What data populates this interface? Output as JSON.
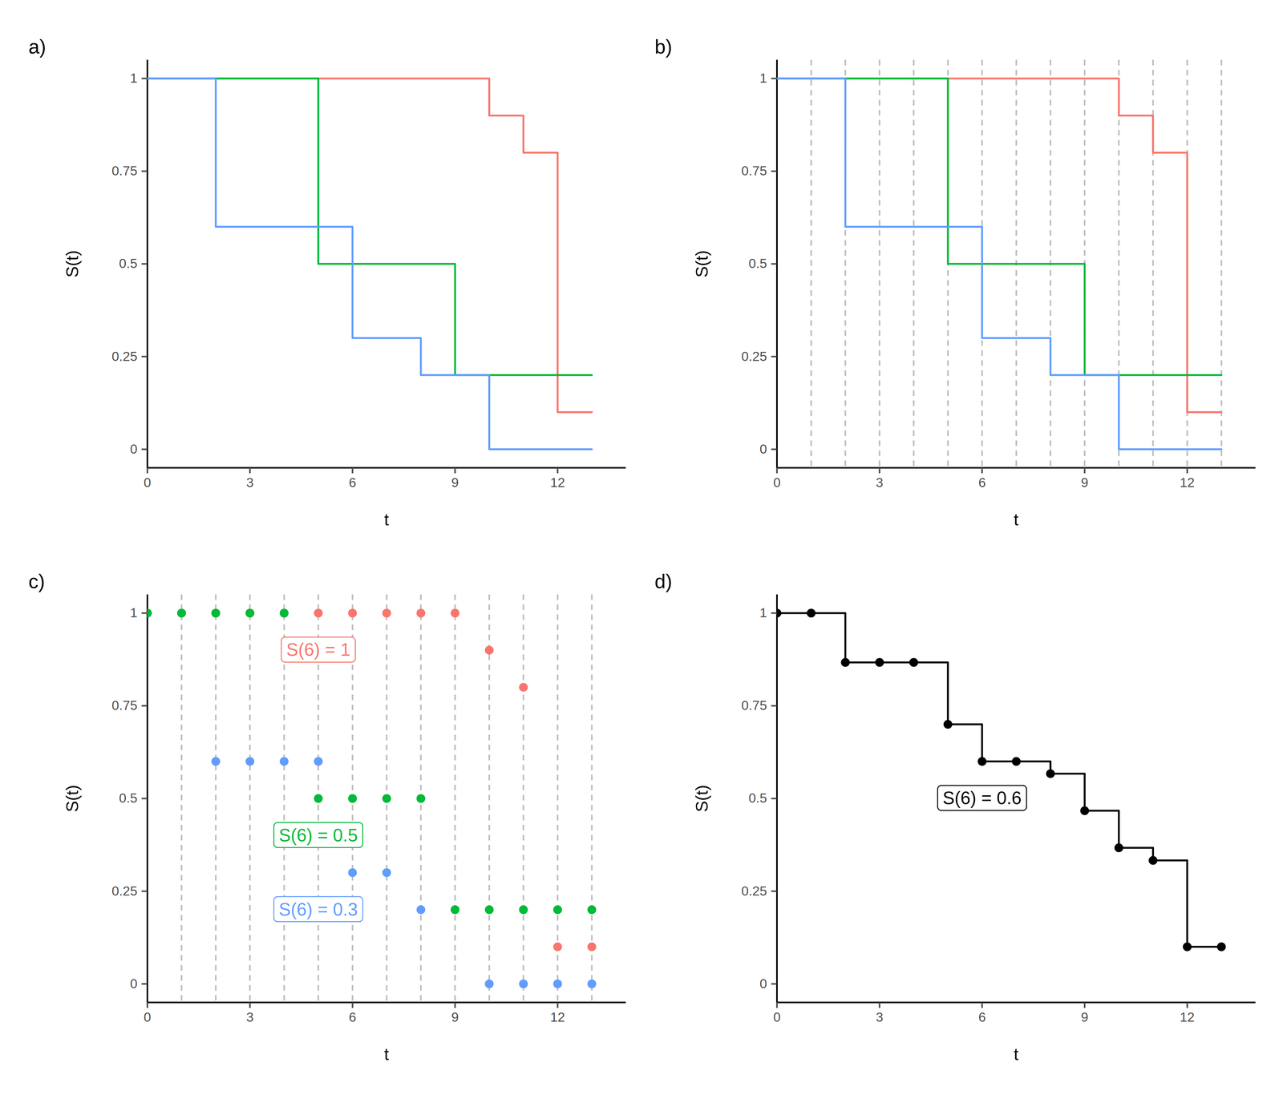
{
  "chart_data": [
    {
      "type": "step",
      "title": "a)",
      "x_label": "t",
      "y_label": "S(t)",
      "x": [
        0,
        1,
        2,
        3,
        4,
        5,
        6,
        7,
        8,
        9,
        10,
        11,
        12,
        13
      ],
      "series": [
        {
          "color": "#F8766D",
          "values": [
            1,
            1,
            1,
            1,
            1,
            1,
            1,
            1,
            1,
            1,
            0.9,
            0.8,
            0.1,
            0.1
          ]
        },
        {
          "color": "#00BA38",
          "values": [
            1,
            1,
            1,
            1,
            1,
            0.5,
            0.5,
            0.5,
            0.5,
            0.2,
            0.2,
            0.2,
            0.2,
            0.2
          ]
        },
        {
          "color": "#619CFF",
          "values": [
            1,
            1,
            0.6,
            0.6,
            0.6,
            0.6,
            0.3,
            0.3,
            0.2,
            0.2,
            0,
            0,
            0,
            0
          ]
        }
      ],
      "xlim": [
        0,
        14
      ],
      "ylim": [
        -0.05,
        1.05
      ],
      "xticks": [
        0,
        3,
        6,
        9,
        12
      ],
      "yticks": [
        0,
        0.25,
        0.5,
        0.75,
        1
      ]
    },
    {
      "type": "step",
      "title": "b)",
      "x_label": "t",
      "y_label": "S(t)",
      "x": [
        0,
        1,
        2,
        3,
        4,
        5,
        6,
        7,
        8,
        9,
        10,
        11,
        12,
        13
      ],
      "series": [
        {
          "color": "#F8766D",
          "values": [
            1,
            1,
            1,
            1,
            1,
            1,
            1,
            1,
            1,
            1,
            0.9,
            0.8,
            0.1,
            0.1
          ]
        },
        {
          "color": "#00BA38",
          "values": [
            1,
            1,
            1,
            1,
            1,
            0.5,
            0.5,
            0.5,
            0.5,
            0.2,
            0.2,
            0.2,
            0.2,
            0.2
          ]
        },
        {
          "color": "#619CFF",
          "values": [
            1,
            1,
            0.6,
            0.6,
            0.6,
            0.6,
            0.3,
            0.3,
            0.2,
            0.2,
            0,
            0,
            0,
            0
          ]
        }
      ],
      "vlines": [
        1,
        2,
        3,
        4,
        5,
        6,
        7,
        8,
        9,
        10,
        11,
        12,
        13
      ],
      "xlim": [
        0,
        14
      ],
      "ylim": [
        -0.05,
        1.05
      ],
      "xticks": [
        0,
        3,
        6,
        9,
        12
      ],
      "yticks": [
        0,
        0.25,
        0.5,
        0.75,
        1
      ]
    },
    {
      "type": "scatter",
      "marker": "circle",
      "title": "c)",
      "x_label": "t",
      "y_label": "S(t)",
      "x": [
        0,
        1,
        2,
        3,
        4,
        5,
        6,
        7,
        8,
        9,
        10,
        11,
        12,
        13
      ],
      "series": [
        {
          "color": "#F8766D",
          "values": [
            1,
            1,
            1,
            1,
            1,
            1,
            1,
            1,
            1,
            1,
            0.9,
            0.8,
            0.1,
            0.1
          ]
        },
        {
          "color": "#619CFF",
          "values": [
            1,
            1,
            0.6,
            0.6,
            0.6,
            0.6,
            0.3,
            0.3,
            0.2,
            0.2,
            0,
            0,
            0,
            0
          ]
        },
        {
          "color": "#00BA38",
          "values": [
            1,
            1,
            1,
            1,
            1,
            0.5,
            0.5,
            0.5,
            0.5,
            0.2,
            0.2,
            0.2,
            0.2,
            0.2
          ]
        }
      ],
      "vlines": [
        1,
        2,
        3,
        4,
        5,
        6,
        7,
        8,
        9,
        10,
        11,
        12,
        13
      ],
      "annotations": [
        {
          "text": "S(6) = 1",
          "x": 5,
          "y": 0.9,
          "color": "#F8766D"
        },
        {
          "text": "S(6) = 0.5",
          "x": 5,
          "y": 0.4,
          "color": "#00BA38"
        },
        {
          "text": "S(6) = 0.3",
          "x": 5,
          "y": 0.2,
          "color": "#619CFF"
        }
      ],
      "xlim": [
        0,
        14
      ],
      "ylim": [
        -0.05,
        1.05
      ],
      "xticks": [
        0,
        3,
        6,
        9,
        12
      ],
      "yticks": [
        0,
        0.25,
        0.5,
        0.75,
        1
      ]
    },
    {
      "type": "step",
      "marker": "circle",
      "title": "d)",
      "x_label": "t",
      "y_label": "S(t)",
      "x": [
        0,
        1,
        2,
        3,
        4,
        5,
        6,
        7,
        8,
        9,
        10,
        11,
        12,
        13
      ],
      "series": [
        {
          "color": "#000000",
          "values": [
            1,
            1,
            0.867,
            0.867,
            0.867,
            0.7,
            0.6,
            0.6,
            0.567,
            0.467,
            0.367,
            0.333,
            0.1,
            0.1
          ]
        }
      ],
      "annotations": [
        {
          "text": "S(6) = 0.6",
          "x": 6,
          "y": 0.5,
          "color": "#000000"
        }
      ],
      "xlim": [
        0,
        14
      ],
      "ylim": [
        -0.05,
        1.05
      ],
      "xticks": [
        0,
        3,
        6,
        9,
        12
      ],
      "yticks": [
        0,
        0.25,
        0.5,
        0.75,
        1
      ]
    }
  ]
}
